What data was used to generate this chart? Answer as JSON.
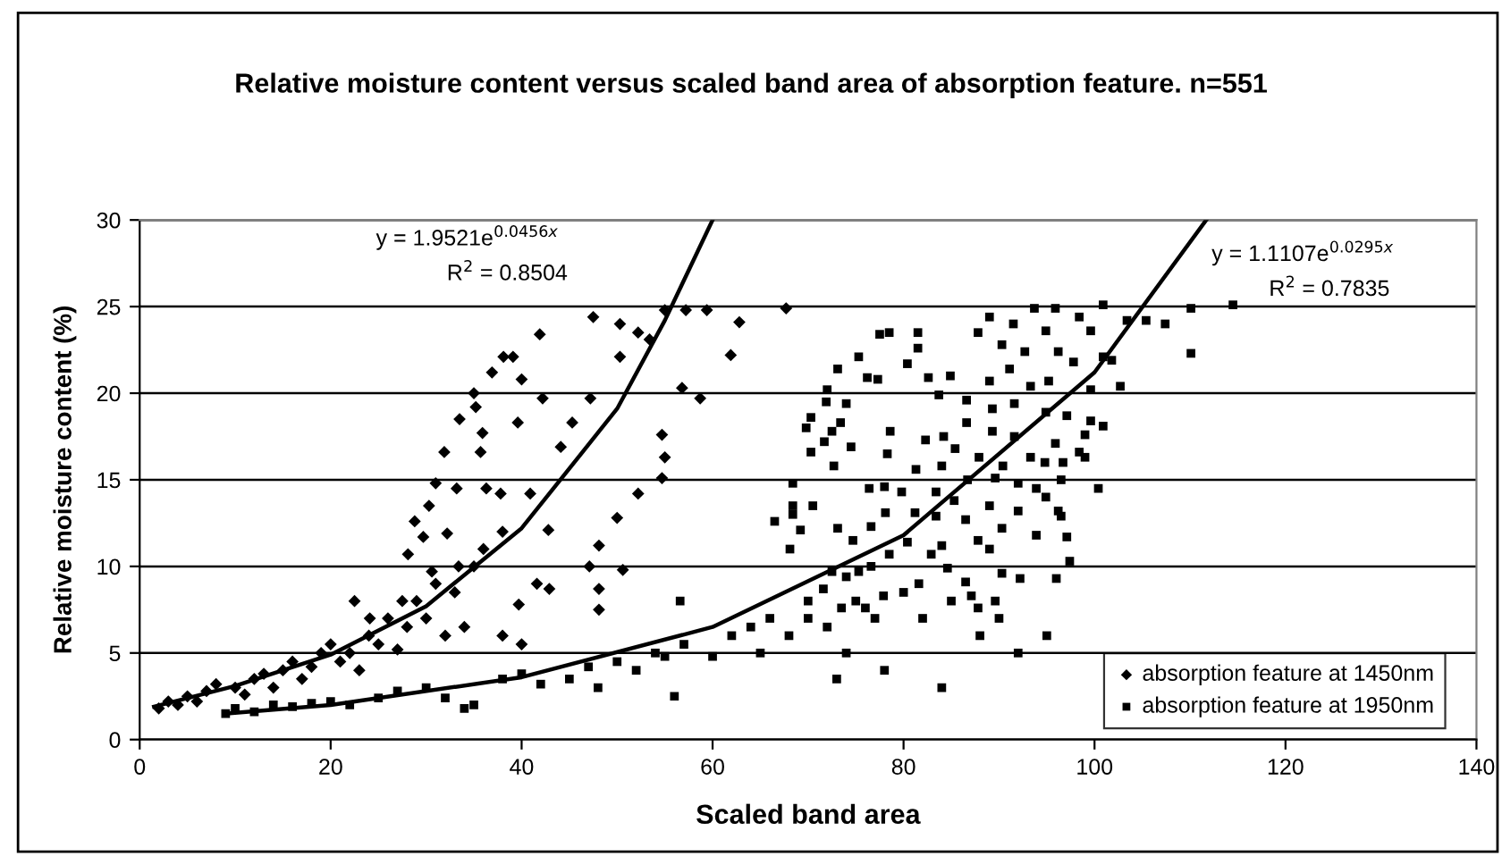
{
  "chart_data": {
    "type": "scatter",
    "title": "Relative moisture content versus scaled band area of absorption feature. n=551",
    "xlabel": "Scaled band area",
    "ylabel": "Relative moisture content (%)",
    "xlim": [
      0,
      140
    ],
    "xticks": [
      0,
      20,
      40,
      60,
      80,
      100,
      120,
      140
    ],
    "ylim": [
      0,
      30
    ],
    "yticks": [
      0,
      5,
      10,
      15,
      20,
      25,
      30
    ],
    "grid": "y",
    "legend": "bottom right",
    "annotations": [
      "y = 1.9521e$^{0.0456x}$",
      "R$^{2}$ = 0.8504",
      "y = 1.1107e$^{0.0295x}$",
      "R$^{2}$ = 0.7835"
    ],
    "series": [
      {
        "name": "absorption feature at 1450nm",
        "color": "#000000",
        "marker": "diamond",
        "x": [
          38.1,
          36.9,
          35.0,
          35.2,
          33.5,
          35.9,
          31.9,
          35.7,
          31.0,
          33.2,
          36.3,
          30.3,
          28.8,
          29.7,
          32.2,
          28.1,
          30.6,
          33.4,
          22.5,
          27.5,
          24.1,
          47.5,
          50.3,
          55.0,
          57.2,
          59.4,
          62.8,
          67.7,
          61.9,
          58.7,
          56.8,
          41.9,
          39.1,
          40.0,
          42.2,
          54.7,
          55.0,
          54.7,
          52.2,
          50.0,
          48.1,
          50.6,
          47.1,
          48.1,
          48.1,
          42.9,
          41.6,
          39.7,
          44.1,
          47.2,
          50.3,
          53.4,
          40.9,
          37.8,
          45.3,
          52.2,
          39.6,
          42.8,
          2,
          3,
          4,
          5,
          6,
          7,
          8,
          10,
          12,
          13,
          15,
          16,
          18,
          19,
          20,
          22,
          24,
          25,
          26,
          28,
          29,
          30,
          31,
          33,
          35,
          36,
          38,
          34,
          14,
          17,
          21,
          27,
          32,
          23,
          11,
          38,
          40
        ],
        "values": [
          22.1,
          21.2,
          20.0,
          19.2,
          18.5,
          17.7,
          16.6,
          16.6,
          14.8,
          14.5,
          14.5,
          13.5,
          12.6,
          11.7,
          11.9,
          10.7,
          9.7,
          10.0,
          8.0,
          8.0,
          7.0,
          24.4,
          24.0,
          24.8,
          24.8,
          24.8,
          24.1,
          24.9,
          22.2,
          19.7,
          20.3,
          23.4,
          22.1,
          20.8,
          19.7,
          17.6,
          16.3,
          15.1,
          14.2,
          12.8,
          11.2,
          9.8,
          10.0,
          8.7,
          7.5,
          8.7,
          9.0,
          7.8,
          16.9,
          19.7,
          22.1,
          23.1,
          14.2,
          14.2,
          18.3,
          23.5,
          18.3,
          12.1,
          1.8,
          2.2,
          2.0,
          2.5,
          2.2,
          2.8,
          3.2,
          3.0,
          3.5,
          3.8,
          4.0,
          4.5,
          4.2,
          5.0,
          5.5,
          5.0,
          6.0,
          5.5,
          7.0,
          6.5,
          8.0,
          7.0,
          9.0,
          8.5,
          10.0,
          11.0,
          12.0,
          6.5,
          3.0,
          3.5,
          4.5,
          5.2,
          6.0,
          4.0,
          2.6,
          6.0,
          5.5
        ]
      },
      {
        "name": "absorption feature at 1950nm",
        "color": "#000000",
        "marker": "square",
        "x": [
          77.5,
          78.5,
          81.5,
          81.5,
          75.3,
          73.1,
          76.2,
          77.3,
          80.4,
          82.6,
          72.0,
          71.9,
          74.0,
          70.3,
          73.4,
          72.5,
          69.8,
          71.7,
          74.5,
          70.3,
          78.6,
          78.3,
          82.3,
          72.7,
          81.3,
          68.4,
          76.4,
          78.0,
          79.8,
          83.4,
          70.5,
          68.4,
          66.5,
          68.4,
          69.2,
          68.1,
          73.1,
          74.7,
          76.6,
          78.1,
          81.2,
          72.5,
          74.0,
          75.3,
          76.6,
          78.5,
          80.4,
          82.9,
          81.6,
          70.0,
          71.6,
          73.5,
          76.0,
          77.9,
          56.6,
          93.7,
          95.9,
          100.9,
          98.4,
          89.0,
          87.8,
          91.5,
          94.9,
          99.6,
          90.3,
          92.7,
          96.2,
          97.8,
          100.9,
          101.8,
          103.4,
          105.4,
          107.4,
          110.1,
          114.5,
          110.1,
          102.7,
          99.6,
          91.1,
          89.0,
          93.3,
          95.2,
          84.9,
          83.7,
          86.6,
          89.3,
          91.6,
          94.9,
          97.1,
          99.6,
          100.9,
          86.6,
          84.2,
          89.3,
          91.6,
          95.9,
          99.0,
          98.4,
          85.4,
          87.9,
          90.4,
          93.3,
          94.8,
          96.7,
          99.0,
          84.0,
          86.7,
          89.6,
          92.0,
          93.9,
          96.5,
          100.4,
          85.3,
          89.0,
          92.0,
          94.9,
          96.2,
          83.4,
          86.5,
          90.3,
          93.9,
          96.5,
          84.0,
          87.8,
          89.0,
          97.1,
          97.4,
          84.6,
          90.3,
          92.2,
          96.0,
          86.5,
          87.1,
          89.6,
          87.8,
          9,
          10,
          12,
          14,
          16,
          18,
          20,
          22,
          25,
          27,
          30,
          32,
          34,
          35,
          38,
          40,
          42,
          45,
          47,
          48,
          50,
          52,
          54,
          55,
          56,
          57,
          60,
          62,
          64,
          66,
          65,
          68,
          70,
          72,
          74,
          75,
          77,
          80,
          82,
          85,
          88,
          90,
          92,
          95,
          78,
          73,
          84
        ],
        "values": [
          23.4,
          23.5,
          23.5,
          22.6,
          22.1,
          21.4,
          20.9,
          20.8,
          21.7,
          20.9,
          20.2,
          19.5,
          19.4,
          18.6,
          18.3,
          17.8,
          18.0,
          17.2,
          16.9,
          16.6,
          17.8,
          16.5,
          17.3,
          15.8,
          15.6,
          14.8,
          14.5,
          14.6,
          14.3,
          14.3,
          13.5,
          13.5,
          12.6,
          13.0,
          12.1,
          11.0,
          12.2,
          11.5,
          12.3,
          13.1,
          13.1,
          9.7,
          9.4,
          9.7,
          10.0,
          10.7,
          11.4,
          10.7,
          9.0,
          8.0,
          8.7,
          7.6,
          7.6,
          8.3,
          8.0,
          24.9,
          24.9,
          25.1,
          24.4,
          24.4,
          23.5,
          24.0,
          23.6,
          23.6,
          22.8,
          22.4,
          22.4,
          21.8,
          22.1,
          21.9,
          24.2,
          24.2,
          24.0,
          24.9,
          25.1,
          22.3,
          20.4,
          20.2,
          21.4,
          20.7,
          20.4,
          20.7,
          21.0,
          19.9,
          19.6,
          19.1,
          19.4,
          18.9,
          18.7,
          18.4,
          18.1,
          18.3,
          17.5,
          17.8,
          17.5,
          17.1,
          17.6,
          16.6,
          16.8,
          16.3,
          15.8,
          16.3,
          16.0,
          16.0,
          16.3,
          15.8,
          15.0,
          15.1,
          14.8,
          14.5,
          15.0,
          14.5,
          13.8,
          13.5,
          13.2,
          14.0,
          13.2,
          12.9,
          12.7,
          12.2,
          11.8,
          12.9,
          11.2,
          11.5,
          11.0,
          11.7,
          10.3,
          9.9,
          9.6,
          9.3,
          9.3,
          9.1,
          8.3,
          8.0,
          7.6,
          1.5,
          1.8,
          1.6,
          2.0,
          1.9,
          2.1,
          2.2,
          2.0,
          2.4,
          2.8,
          3.0,
          2.4,
          1.8,
          2.0,
          3.5,
          3.8,
          3.2,
          3.5,
          4.2,
          3.0,
          4.5,
          4.0,
          5.0,
          4.8,
          2.5,
          5.5,
          4.8,
          6.0,
          6.5,
          7.0,
          5.0,
          6.0,
          7.0,
          6.5,
          5.0,
          8.0,
          7.0,
          8.5,
          7.0,
          8.0,
          6.0,
          7.0,
          5.0,
          6.0,
          4.0,
          3.5,
          3.0
        ]
      },
      {
        "type": "line",
        "color": "#000000",
        "marker": "none",
        "x": [
          1.5,
          10,
          20,
          30,
          40,
          50,
          55,
          60
        ],
        "values": [
          1.9,
          3.1,
          4.9,
          7.7,
          12.2,
          19.1,
          24.2,
          30
        ]
      },
      {
        "type": "line",
        "color": "#000000",
        "marker": "none",
        "x": [
          9,
          20,
          40,
          60,
          80,
          100,
          111.7
        ],
        "values": [
          1.5,
          2.0,
          3.6,
          6.5,
          11.8,
          21.2,
          30
        ]
      }
    ]
  }
}
